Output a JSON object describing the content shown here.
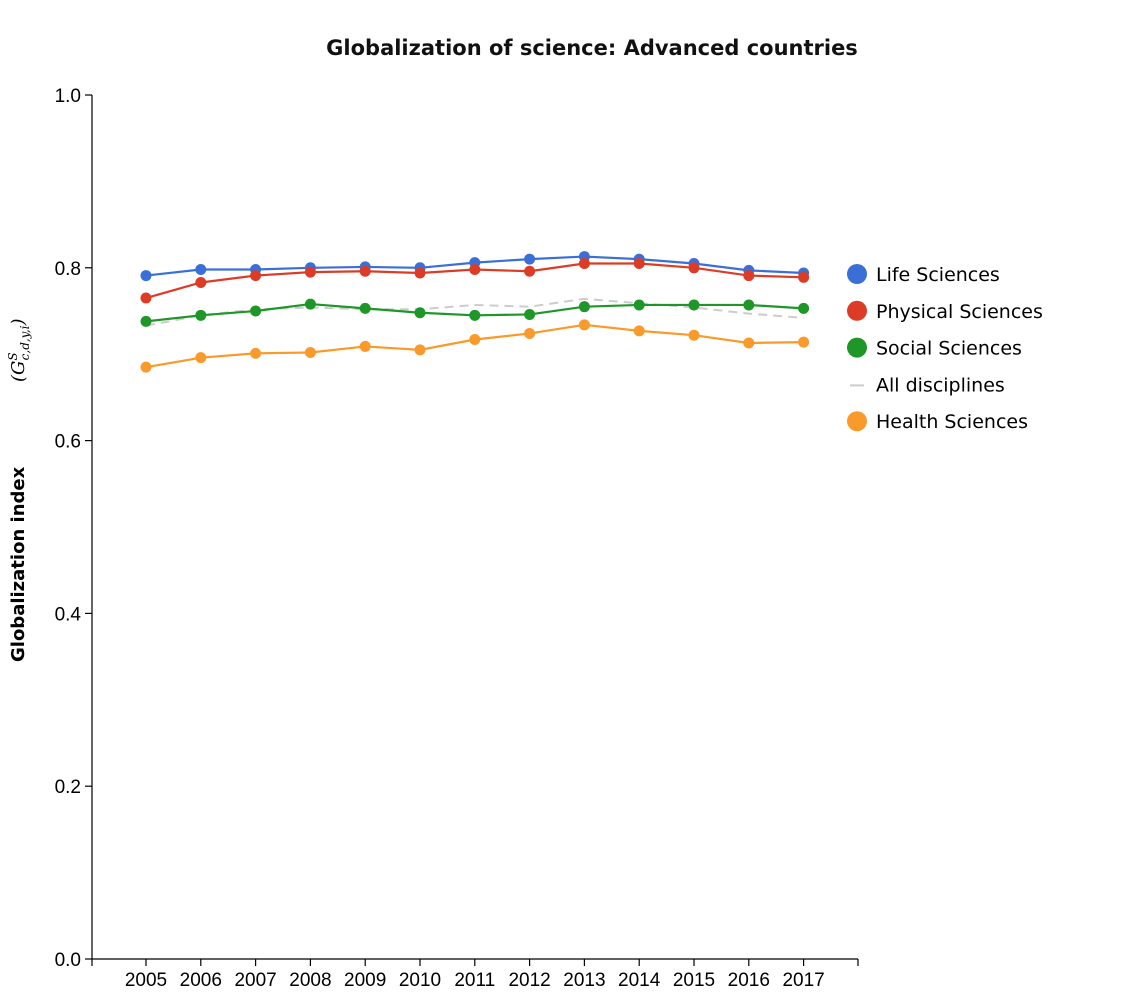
{
  "chart_data": {
    "type": "line",
    "title": "Globalization of science: Advanced countries",
    "xlabel": "",
    "ylabel": "Globalization index",
    "ylabel_symbol": {
      "base": "G",
      "sup": "S",
      "sub": "c,d,y,i"
    },
    "ylim": [
      0.0,
      1.0
    ],
    "yticks": [
      "0.0",
      "0.2",
      "0.4",
      "0.6",
      "0.8",
      "1.0"
    ],
    "ytick_values": [
      0.0,
      0.2,
      0.4,
      0.6,
      0.8,
      1.0
    ],
    "grid": false,
    "legend_position": "right",
    "x": [
      "2005",
      "2006",
      "2007",
      "2008",
      "2009",
      "2010",
      "2011",
      "2012",
      "2013",
      "2014",
      "2015",
      "2016",
      "2017"
    ],
    "series": [
      {
        "name": "Life Sciences",
        "color": "#3a6fd8",
        "style": "solid",
        "markers": true,
        "values": [
          0.791,
          0.798,
          0.798,
          0.8,
          0.801,
          0.8,
          0.806,
          0.81,
          0.813,
          0.81,
          0.805,
          0.797,
          0.794
        ]
      },
      {
        "name": "Physical Sciences",
        "color": "#dc3c26",
        "style": "solid",
        "markers": true,
        "values": [
          0.765,
          0.783,
          0.791,
          0.795,
          0.796,
          0.794,
          0.798,
          0.796,
          0.805,
          0.805,
          0.8,
          0.791,
          0.789
        ]
      },
      {
        "name": "Social Sciences",
        "color": "#1f9628",
        "style": "solid",
        "markers": true,
        "values": [
          0.738,
          0.745,
          0.75,
          0.758,
          0.753,
          0.748,
          0.745,
          0.746,
          0.755,
          0.757,
          0.757,
          0.757,
          0.753
        ]
      },
      {
        "name": "All disciplines",
        "color": "#cccccc",
        "style": "dashed",
        "markers": false,
        "values": [
          0.733,
          0.745,
          0.752,
          0.754,
          0.752,
          0.752,
          0.757,
          0.755,
          0.764,
          0.759,
          0.754,
          0.747,
          0.742
        ]
      },
      {
        "name": "Health Sciences",
        "color": "#f99a2a",
        "style": "solid",
        "markers": true,
        "values": [
          0.685,
          0.696,
          0.701,
          0.702,
          0.709,
          0.705,
          0.717,
          0.724,
          0.734,
          0.727,
          0.722,
          0.713,
          0.714
        ]
      }
    ]
  }
}
